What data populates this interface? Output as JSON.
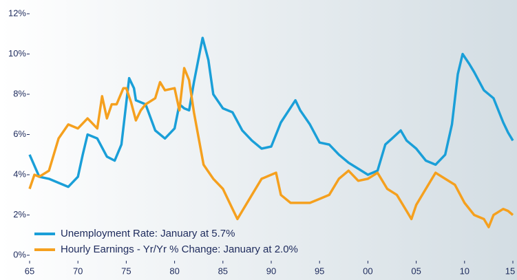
{
  "chart_data": {
    "type": "line",
    "xlim": [
      1965,
      2015
    ],
    "ylim": [
      0,
      12
    ],
    "xticks": [
      {
        "value": 1965,
        "label": "65"
      },
      {
        "value": 1970,
        "label": "70"
      },
      {
        "value": 1975,
        "label": "75"
      },
      {
        "value": 1980,
        "label": "80"
      },
      {
        "value": 1985,
        "label": "85"
      },
      {
        "value": 1990,
        "label": "90"
      },
      {
        "value": 1995,
        "label": "95"
      },
      {
        "value": 2000,
        "label": "00"
      },
      {
        "value": 2005,
        "label": "05"
      },
      {
        "value": 2010,
        "label": "10"
      },
      {
        "value": 2015,
        "label": "15"
      }
    ],
    "yticks": [
      {
        "value": 0,
        "label": "0%"
      },
      {
        "value": 2,
        "label": "2%"
      },
      {
        "value": 4,
        "label": "4%"
      },
      {
        "value": 6,
        "label": "6%"
      },
      {
        "value": 8,
        "label": "8%"
      },
      {
        "value": 10,
        "label": "10%"
      },
      {
        "value": 12,
        "label": "12%"
      }
    ],
    "legend": "lower left",
    "series": [
      {
        "name": "Unemployment Rate: January at 5.7%",
        "color": "#1a9fd8",
        "x": [
          1965,
          1966,
          1967,
          1968,
          1969,
          1970,
          1970.5,
          1971,
          1972,
          1973,
          1973.8,
          1974.5,
          1975.3,
          1975.8,
          1976,
          1977,
          1978,
          1979,
          1980,
          1980.5,
          1981,
          1981.5,
          1982,
          1982.9,
          1983.5,
          1984,
          1985,
          1986,
          1987,
          1988,
          1989,
          1990,
          1991,
          1992.5,
          1993,
          1994,
          1995,
          1996,
          1997,
          1998,
          1999,
          2000,
          2001,
          2001.8,
          2002.5,
          2003.4,
          2004,
          2005,
          2006,
          2007,
          2008,
          2008.7,
          2009.3,
          2009.8,
          2010.5,
          2011,
          2012,
          2013,
          2014,
          2014.5,
          2015
        ],
        "values": [
          5.0,
          3.9,
          3.8,
          3.6,
          3.4,
          3.9,
          5.0,
          6.0,
          5.8,
          4.9,
          4.7,
          5.5,
          8.8,
          8.3,
          7.7,
          7.5,
          6.2,
          5.8,
          6.3,
          7.5,
          7.3,
          7.2,
          8.6,
          10.8,
          9.7,
          8.0,
          7.3,
          7.1,
          6.2,
          5.7,
          5.3,
          5.4,
          6.6,
          7.7,
          7.2,
          6.5,
          5.6,
          5.5,
          5.0,
          4.6,
          4.3,
          4.0,
          4.2,
          5.5,
          5.8,
          6.2,
          5.7,
          5.3,
          4.7,
          4.5,
          5.0,
          6.5,
          9.0,
          10.0,
          9.5,
          9.1,
          8.2,
          7.8,
          6.6,
          6.1,
          5.7
        ]
      },
      {
        "name": "Hourly Earnings - Yr/Yr % Change: January at 2.0%",
        "color": "#f5a01e",
        "x": [
          1965,
          1965.5,
          1966,
          1967,
          1968,
          1969,
          1970,
          1971,
          1972,
          1972.5,
          1973,
          1973.5,
          1974,
          1974.7,
          1975,
          1975.5,
          1976,
          1976.5,
          1977,
          1978,
          1978.5,
          1979,
          1980,
          1980.5,
          1981,
          1981.5,
          1982,
          1983,
          1984,
          1985,
          1986,
          1986.5,
          1987,
          1988,
          1989,
          1990,
          1990.5,
          1991,
          1992,
          1993,
          1994,
          1995,
          1996,
          1997,
          1998,
          1999,
          2000,
          2001,
          2002,
          2003,
          2004,
          2004.5,
          2005,
          2006,
          2007,
          2008,
          2009,
          2010,
          2011,
          2012,
          2012.5,
          2013,
          2014,
          2014.5,
          2015
        ],
        "values": [
          3.3,
          4.0,
          3.9,
          4.2,
          5.8,
          6.5,
          6.3,
          6.8,
          6.3,
          7.9,
          6.8,
          7.5,
          7.5,
          8.3,
          8.3,
          7.6,
          6.7,
          7.2,
          7.5,
          7.8,
          8.6,
          8.2,
          8.3,
          7.2,
          9.3,
          8.7,
          7.1,
          4.5,
          3.8,
          3.3,
          2.3,
          1.8,
          2.2,
          3.0,
          3.8,
          4.0,
          4.1,
          3.0,
          2.6,
          2.6,
          2.6,
          2.8,
          3.0,
          3.8,
          4.2,
          3.7,
          3.8,
          4.1,
          3.3,
          3.0,
          2.2,
          1.8,
          2.5,
          3.3,
          4.1,
          3.8,
          3.5,
          2.6,
          2.0,
          1.8,
          1.4,
          2.0,
          2.3,
          2.2,
          2.0
        ]
      }
    ]
  }
}
